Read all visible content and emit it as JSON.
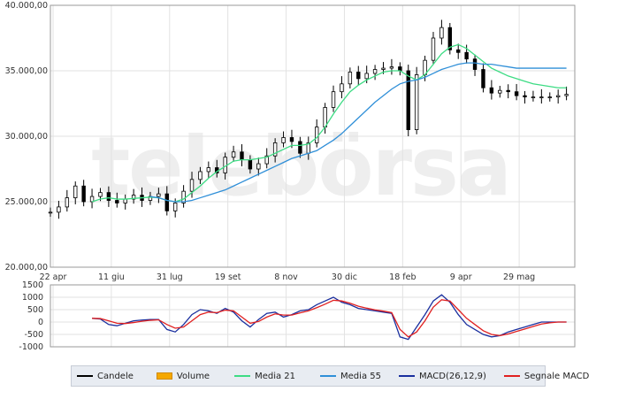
{
  "watermark": "telebörsa",
  "chart_data": [
    {
      "type": "line",
      "name": "price",
      "yticks": [
        20000,
        25000,
        30000,
        35000,
        40000
      ],
      "ytick_labels": [
        "20.000,00",
        "25.000,00",
        "30.000,00",
        "35.000,00",
        "40.000,00"
      ],
      "ylim": [
        20000,
        40000
      ],
      "xlim": [
        0,
        63
      ],
      "xticks": [
        0,
        7,
        14,
        21,
        28,
        35,
        42,
        49,
        56
      ],
      "xtick_labels": [
        "22 apr",
        "11 giu",
        "31 lug",
        "19 set",
        "8 nov",
        "30 dic",
        "18 feb",
        "9 apr",
        "29 mag"
      ],
      "grid": true,
      "series": [
        {
          "name": "Candele",
          "color": "#000000",
          "x": [
            0,
            1,
            2,
            3,
            4,
            5,
            6,
            7,
            8,
            9,
            10,
            11,
            12,
            13,
            14,
            15,
            16,
            17,
            18,
            19,
            20,
            21,
            22,
            23,
            24,
            25,
            26,
            27,
            28,
            29,
            30,
            31,
            32,
            33,
            34,
            35,
            36,
            37,
            38,
            39,
            40,
            41,
            42,
            43,
            44,
            45,
            46,
            47,
            48,
            49,
            50,
            51,
            52,
            53,
            54,
            55,
            56,
            57,
            58,
            59,
            60,
            61,
            62
          ],
          "values": [
            24200,
            24600,
            25300,
            26200,
            25000,
            25400,
            25700,
            25100,
            24900,
            25200,
            25500,
            25100,
            25400,
            25600,
            24300,
            24900,
            25800,
            26700,
            27300,
            27600,
            27200,
            28400,
            28800,
            28200,
            27500,
            27900,
            28500,
            29500,
            29900,
            29600,
            28700,
            29500,
            30700,
            32200,
            33400,
            34000,
            34900,
            34400,
            34800,
            35100,
            35200,
            35300,
            35000,
            30500,
            34700,
            35800,
            37500,
            38300,
            36600,
            36400,
            35900,
            35100,
            33700,
            33300,
            33500,
            33400,
            33100,
            33000,
            33000,
            33000,
            33000,
            33100,
            33200
          ]
        },
        {
          "name": "Media 21",
          "color": "#3ddc84",
          "x": [
            5,
            6,
            7,
            8,
            9,
            10,
            11,
            12,
            13,
            14,
            15,
            16,
            17,
            18,
            19,
            20,
            21,
            22,
            23,
            24,
            25,
            26,
            27,
            28,
            29,
            30,
            31,
            32,
            33,
            34,
            35,
            36,
            37,
            38,
            39,
            40,
            41,
            42,
            43,
            44,
            45,
            46,
            47,
            48,
            49,
            50,
            51,
            52,
            53,
            54,
            55,
            56,
            57,
            58,
            59,
            60,
            61,
            62
          ],
          "values": [
            25000,
            25200,
            25300,
            25200,
            25200,
            25250,
            25300,
            25350,
            25300,
            25100,
            25000,
            25200,
            25700,
            26200,
            26800,
            27300,
            27700,
            28100,
            28200,
            28200,
            28300,
            28400,
            28700,
            29000,
            29300,
            29300,
            29400,
            29900,
            30700,
            31700,
            32600,
            33400,
            33900,
            34300,
            34600,
            34900,
            35000,
            35000,
            34600,
            34300,
            34700,
            35500,
            36300,
            36800,
            37000,
            36700,
            36200,
            35700,
            35200,
            34900,
            34600,
            34400,
            34200,
            34000,
            33900,
            33800,
            33700,
            33700
          ]
        },
        {
          "name": "Media 55",
          "color": "#2f8fd8",
          "x": [
            12,
            13,
            14,
            15,
            16,
            17,
            18,
            19,
            20,
            21,
            22,
            23,
            24,
            25,
            26,
            27,
            28,
            29,
            30,
            31,
            32,
            33,
            34,
            35,
            36,
            37,
            38,
            39,
            40,
            41,
            42,
            43,
            44,
            45,
            46,
            47,
            48,
            49,
            50,
            51,
            52,
            53,
            54,
            55,
            56,
            57,
            58,
            59,
            60,
            61,
            62
          ],
          "values": [
            25400,
            25300,
            25100,
            25000,
            25000,
            25100,
            25300,
            25500,
            25700,
            25900,
            26200,
            26500,
            26800,
            27100,
            27400,
            27700,
            28000,
            28300,
            28500,
            28700,
            28900,
            29300,
            29700,
            30200,
            30800,
            31400,
            32000,
            32600,
            33100,
            33600,
            34000,
            34200,
            34300,
            34500,
            34800,
            35100,
            35300,
            35500,
            35600,
            35600,
            35500,
            35500,
            35400,
            35300,
            35200,
            35200,
            35200,
            35200,
            35200,
            35200,
            35200
          ]
        }
      ]
    },
    {
      "type": "line",
      "name": "macd",
      "yticks": [
        1500,
        1000,
        500,
        0,
        -500,
        -1000
      ],
      "ytick_labels": [
        "1500",
        "1000",
        "500",
        "0",
        "-500",
        "-1000"
      ],
      "ylim": [
        -1000,
        1500
      ],
      "xlim": [
        0,
        63
      ],
      "grid": true,
      "series": [
        {
          "name": "MACD(26,12,9)",
          "color": "#1a2f9e",
          "x": [
            5,
            6,
            7,
            8,
            9,
            10,
            11,
            12,
            13,
            14,
            15,
            16,
            17,
            18,
            19,
            20,
            21,
            22,
            23,
            24,
            25,
            26,
            27,
            28,
            29,
            30,
            31,
            32,
            33,
            34,
            35,
            36,
            37,
            38,
            39,
            40,
            41,
            42,
            43,
            44,
            45,
            46,
            47,
            48,
            49,
            50,
            51,
            52,
            53,
            54,
            55,
            56,
            57,
            58,
            59,
            60,
            61,
            62
          ],
          "values": [
            150,
            120,
            -100,
            -150,
            -50,
            50,
            80,
            100,
            100,
            -300,
            -400,
            -100,
            300,
            500,
            450,
            350,
            550,
            400,
            50,
            -200,
            100,
            350,
            400,
            200,
            300,
            450,
            500,
            700,
            850,
            1000,
            800,
            700,
            550,
            500,
            450,
            400,
            350,
            -600,
            -700,
            -200,
            300,
            850,
            1100,
            800,
            300,
            -100,
            -300,
            -500,
            -600,
            -550,
            -400,
            -300,
            -200,
            -100,
            0,
            0,
            0,
            0
          ]
        },
        {
          "name": "Segnale MACD",
          "color": "#e02020",
          "x": [
            5,
            6,
            7,
            8,
            9,
            10,
            11,
            12,
            13,
            14,
            15,
            16,
            17,
            18,
            19,
            20,
            21,
            22,
            23,
            24,
            25,
            26,
            27,
            28,
            29,
            30,
            31,
            32,
            33,
            34,
            35,
            36,
            37,
            38,
            39,
            40,
            41,
            42,
            43,
            44,
            45,
            46,
            47,
            48,
            49,
            50,
            51,
            52,
            53,
            54,
            55,
            56,
            57,
            58,
            59,
            60,
            61,
            62
          ],
          "values": [
            150,
            140,
            50,
            -50,
            -60,
            -20,
            30,
            70,
            90,
            -100,
            -250,
            -200,
            50,
            300,
            400,
            380,
            480,
            450,
            200,
            -50,
            20,
            200,
            330,
            280,
            280,
            370,
            450,
            580,
            720,
            880,
            850,
            760,
            640,
            560,
            490,
            440,
            380,
            -300,
            -600,
            -400,
            50,
            600,
            900,
            850,
            500,
            150,
            -100,
            -350,
            -500,
            -550,
            -480,
            -380,
            -280,
            -180,
            -80,
            -30,
            0,
            0
          ]
        }
      ]
    }
  ],
  "legend": {
    "items": [
      {
        "label": "Candele",
        "color": "#000000",
        "kind": "line"
      },
      {
        "label": "Volume",
        "color": "#f5a800",
        "kind": "box"
      },
      {
        "label": "Media 21",
        "color": "#3ddc84",
        "kind": "line"
      },
      {
        "label": "Media 55",
        "color": "#2f8fd8",
        "kind": "line"
      },
      {
        "label": "MACD(26,12,9)",
        "color": "#1a2f9e",
        "kind": "line"
      },
      {
        "label": "Segnale MACD",
        "color": "#e02020",
        "kind": "line"
      }
    ]
  }
}
